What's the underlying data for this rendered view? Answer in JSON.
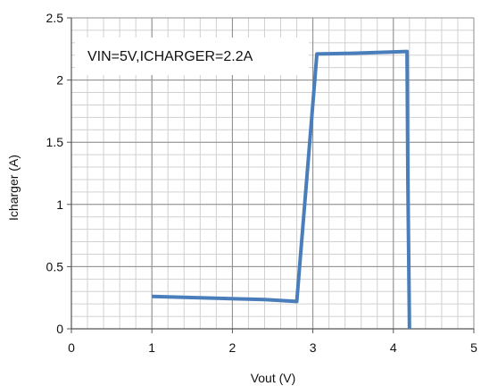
{
  "chart_data": {
    "type": "line",
    "title": "",
    "xlabel": "Vout (V)",
    "ylabel": "Icharger (A)",
    "xlim": [
      0,
      5
    ],
    "ylim": [
      0,
      2.5
    ],
    "xticks": [
      0,
      1,
      2,
      3,
      4,
      5
    ],
    "yticks": [
      0,
      0.5,
      1,
      1.5,
      2,
      2.5
    ],
    "x_tick_labels": [
      "0",
      "1",
      "2",
      "3",
      "4",
      "5"
    ],
    "y_tick_labels": [
      "0",
      "0.5",
      "1",
      "1.5",
      "2",
      "2.5"
    ],
    "minor_grid": true,
    "major_grid": true,
    "annotation": "VIN=5V,ICHARGER=2.2A",
    "series": [
      {
        "color": "#4a7ebb",
        "x": [
          1.0,
          2.4,
          2.8,
          3.05,
          3.5,
          4.17,
          4.18,
          4.2
        ],
        "y": [
          0.26,
          0.235,
          0.22,
          2.21,
          2.215,
          2.23,
          1.2,
          0.0
        ]
      }
    ]
  }
}
